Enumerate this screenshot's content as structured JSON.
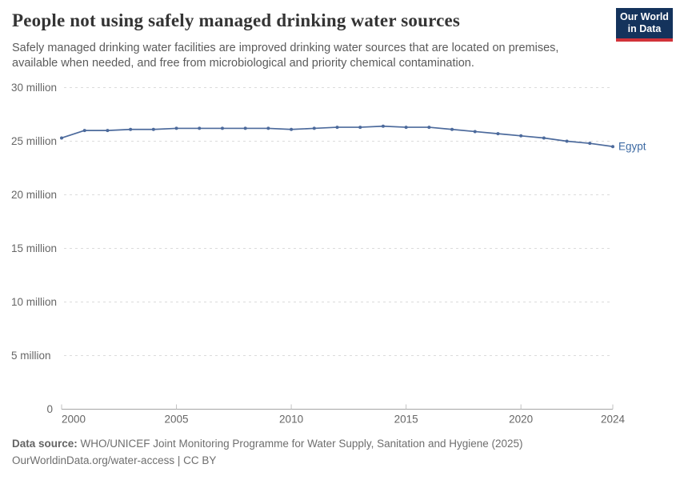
{
  "header": {
    "title": "People not using safely managed drinking water sources",
    "subtitle": "Safely managed drinking water facilities are improved drinking water sources that are located on premises, available when needed, and free from microbiological and priority chemical contamination.",
    "logo": {
      "line1": "Our World",
      "line2": "in Data",
      "bg_color": "#14335c",
      "accent_color": "#d13239"
    }
  },
  "chart_data": {
    "type": "line",
    "title": "People not using safely managed drinking water sources",
    "unit": "million people",
    "x": [
      2000,
      2001,
      2002,
      2003,
      2004,
      2005,
      2006,
      2007,
      2008,
      2009,
      2010,
      2011,
      2012,
      2013,
      2014,
      2015,
      2016,
      2017,
      2018,
      2019,
      2020,
      2021,
      2022,
      2023,
      2024
    ],
    "series": [
      {
        "name": "Egypt",
        "color": "#4c6a9c",
        "label_color": "#3d6aa3",
        "values": [
          25.3,
          26.0,
          26.0,
          26.1,
          26.1,
          26.2,
          26.2,
          26.2,
          26.2,
          26.2,
          26.1,
          26.2,
          26.3,
          26.3,
          26.4,
          26.3,
          26.3,
          26.1,
          25.9,
          25.7,
          25.5,
          25.3,
          25.0,
          24.8,
          24.5
        ]
      }
    ],
    "xlim": [
      2000,
      2024
    ],
    "ylim": [
      0,
      30
    ],
    "x_ticks": [
      2000,
      2005,
      2010,
      2015,
      2020,
      2024
    ],
    "y_ticks": [
      {
        "value": 30,
        "label": "30 million"
      },
      {
        "value": 25,
        "label": "25 million"
      },
      {
        "value": 20,
        "label": "20 million"
      },
      {
        "value": 15,
        "label": "15 million"
      },
      {
        "value": 10,
        "label": "10 million"
      },
      {
        "value": 5,
        "label": "5 million"
      },
      {
        "value": 0,
        "label": "0"
      }
    ],
    "grid": "horizontal-dashed",
    "legend": "end-of-line-label"
  },
  "footer": {
    "data_source_label": "Data source:",
    "data_source_text": "WHO/UNICEF Joint Monitoring Programme for Water Supply, Sanitation and Hygiene (2025)",
    "attribution": "OurWorldinData.org/water-access | CC BY"
  }
}
